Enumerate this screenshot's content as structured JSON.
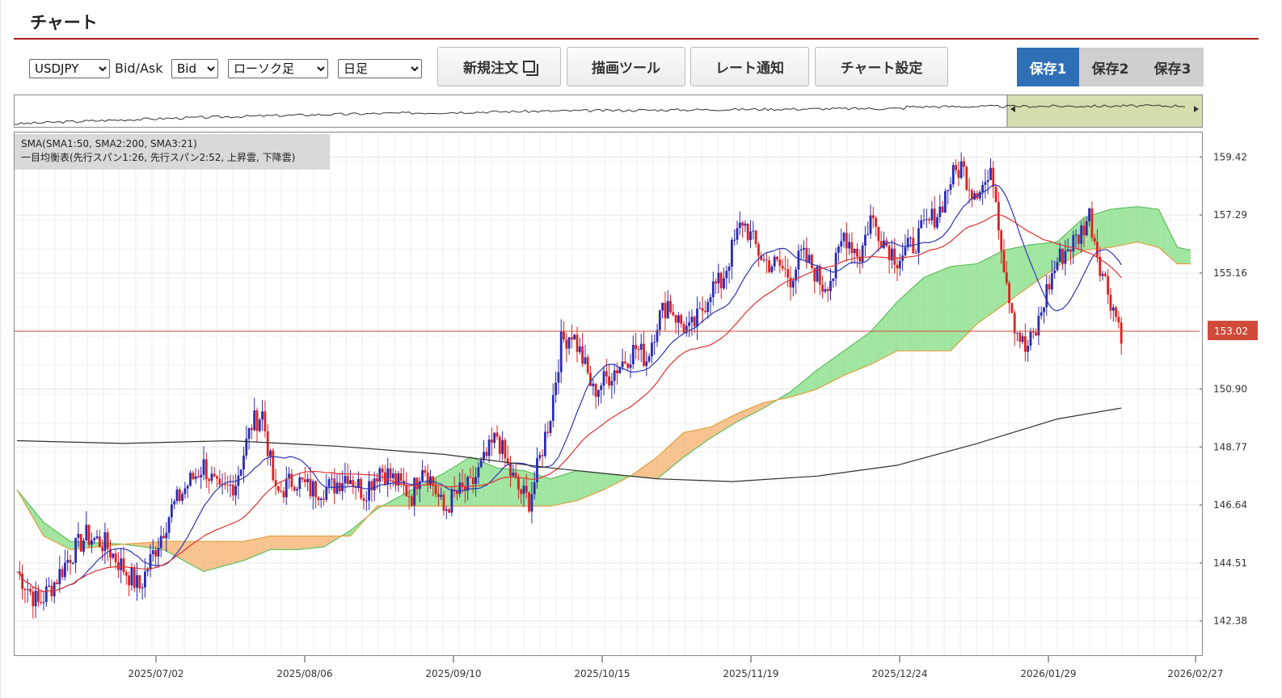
{
  "page": {
    "title": "チャート"
  },
  "toolbar": {
    "symbol": {
      "value": "USDJPY",
      "options": [
        "USDJPY"
      ]
    },
    "bidask_label": "Bid/Ask",
    "bidask": {
      "value": "Bid",
      "options": [
        "Bid"
      ]
    },
    "chart_type": {
      "value": "ローソク足",
      "options": [
        "ローソク足"
      ]
    },
    "timeframe": {
      "value": "日足",
      "options": [
        "日足"
      ]
    },
    "buttons": {
      "new_order": "新規注文",
      "drawing_tools": "描画ツール",
      "rate_alert": "レート通知",
      "chart_settings": "チャート設定"
    },
    "saves": [
      "保存1",
      "保存2",
      "保存3"
    ],
    "active_save": 0
  },
  "legend": {
    "line1": "SMA(SMA1:50, SMA2:200, SMA3:21)",
    "line2": "一目均衡表(先行スパン1:26, 先行スパン2:52, 上昇雲, 下降雲)"
  },
  "colors": {
    "up": "#2a2ab4",
    "down": "#e02020",
    "sma_short": "#2d35b8",
    "sma_mid": "#e23030",
    "sma_long": "#303030",
    "cloud_up": "#8ee08e",
    "cloud_down": "#f7b77a",
    "span_a": "#5fbf5f",
    "span_b": "#e2a040",
    "current_price": "#d04a3a"
  },
  "chart_data": {
    "type": "candlestick",
    "title": "",
    "y_ticks": [
      "159.42",
      "157.29",
      "155.16",
      "150.90",
      "148.77",
      "146.64",
      "144.51",
      "142.38"
    ],
    "y_range": [
      141.3,
      160.5
    ],
    "x_ticks": [
      "2025/07/02",
      "2025/08/06",
      "2025/09/10",
      "2025/10/15",
      "2025/11/19",
      "2025/12/24",
      "2026/01/29",
      "2026/02/27"
    ],
    "current_price": "153.02",
    "navigator_highlight": true,
    "grid": true,
    "price_path": [
      [
        0,
        144.2
      ],
      [
        8,
        143.0
      ],
      [
        14,
        143.8
      ],
      [
        20,
        144.8
      ],
      [
        26,
        145.5
      ],
      [
        33,
        145.2
      ],
      [
        40,
        144.3
      ],
      [
        46,
        143.6
      ],
      [
        50,
        144.6
      ],
      [
        58,
        146.5
      ],
      [
        64,
        147.4
      ],
      [
        70,
        148.1
      ],
      [
        76,
        147.0
      ],
      [
        82,
        147.5
      ],
      [
        88,
        149.6
      ],
      [
        92,
        150.0
      ],
      [
        97,
        147.0
      ],
      [
        104,
        147.6
      ],
      [
        110,
        147.2
      ],
      [
        118,
        147.3
      ],
      [
        124,
        147.8
      ],
      [
        130,
        147.1
      ],
      [
        136,
        148.0
      ],
      [
        142,
        147.5
      ],
      [
        148,
        147.0
      ],
      [
        152,
        148.2
      ],
      [
        156,
        147.4
      ],
      [
        160,
        146.4
      ],
      [
        164,
        147.0
      ],
      [
        170,
        147.3
      ],
      [
        176,
        148.4
      ],
      [
        180,
        149.2
      ],
      [
        184,
        148.0
      ],
      [
        188,
        147.2
      ],
      [
        192,
        146.8
      ],
      [
        194,
        147.5
      ],
      [
        200,
        150.0
      ],
      [
        204,
        152.6
      ],
      [
        208,
        153.0
      ],
      [
        212,
        152.0
      ],
      [
        216,
        150.8
      ],
      [
        220,
        151.2
      ],
      [
        226,
        151.8
      ],
      [
        232,
        152.4
      ],
      [
        236,
        152.0
      ],
      [
        240,
        153.4
      ],
      [
        244,
        154.1
      ],
      [
        248,
        153.4
      ],
      [
        252,
        153.0
      ],
      [
        256,
        153.6
      ],
      [
        260,
        154.6
      ],
      [
        264,
        154.8
      ],
      [
        268,
        156.0
      ],
      [
        272,
        157.1
      ],
      [
        276,
        156.3
      ],
      [
        280,
        155.6
      ],
      [
        286,
        155.4
      ],
      [
        290,
        155.0
      ],
      [
        294,
        155.8
      ],
      [
        298,
        155.4
      ],
      [
        302,
        154.7
      ],
      [
        306,
        155.1
      ],
      [
        310,
        156.6
      ],
      [
        316,
        155.8
      ],
      [
        320,
        157.2
      ],
      [
        326,
        156.2
      ],
      [
        330,
        155.7
      ],
      [
        336,
        156.2
      ],
      [
        340,
        156.8
      ],
      [
        346,
        157.5
      ],
      [
        350,
        158.6
      ],
      [
        354,
        159.1
      ],
      [
        358,
        158.2
      ],
      [
        362,
        158.4
      ],
      [
        366,
        158.7
      ],
      [
        370,
        155.5
      ],
      [
        374,
        153.3
      ],
      [
        378,
        152.3
      ],
      [
        382,
        153.0
      ],
      [
        386,
        154.5
      ],
      [
        390,
        155.6
      ],
      [
        394,
        156.1
      ],
      [
        398,
        156.5
      ],
      [
        402,
        157.3
      ],
      [
        406,
        155.5
      ],
      [
        410,
        154.2
      ],
      [
        414,
        153.0
      ]
    ],
    "sma_long_path": [
      [
        0,
        149.0
      ],
      [
        40,
        148.9
      ],
      [
        80,
        149.0
      ],
      [
        120,
        148.8
      ],
      [
        160,
        148.5
      ],
      [
        200,
        148.0
      ],
      [
        240,
        147.6
      ],
      [
        268,
        147.5
      ],
      [
        300,
        147.7
      ],
      [
        330,
        148.1
      ],
      [
        360,
        148.9
      ],
      [
        390,
        149.8
      ],
      [
        414,
        150.2
      ]
    ],
    "cloud_upper": [
      [
        0,
        147.2
      ],
      [
        10,
        146.0
      ],
      [
        20,
        145.3
      ],
      [
        40,
        145.2
      ],
      [
        55,
        145.0
      ],
      [
        70,
        144.2
      ],
      [
        85,
        144.6
      ],
      [
        95,
        145.0
      ],
      [
        105,
        145.0
      ],
      [
        115,
        145.1
      ],
      [
        125,
        145.7
      ],
      [
        135,
        146.5
      ],
      [
        150,
        147.3
      ],
      [
        160,
        147.8
      ],
      [
        170,
        148.4
      ],
      [
        180,
        148.0
      ],
      [
        190,
        147.9
      ],
      [
        200,
        147.6
      ],
      [
        210,
        147.9
      ],
      [
        220,
        147.8
      ],
      [
        230,
        147.7
      ],
      [
        240,
        147.6
      ],
      [
        250,
        148.4
      ],
      [
        260,
        149.1
      ],
      [
        270,
        149.7
      ],
      [
        280,
        150.2
      ],
      [
        290,
        150.8
      ],
      [
        300,
        151.6
      ],
      [
        310,
        152.3
      ],
      [
        320,
        153.0
      ],
      [
        330,
        154.1
      ],
      [
        340,
        155.0
      ],
      [
        350,
        155.4
      ],
      [
        360,
        155.5
      ],
      [
        370,
        156.0
      ],
      [
        380,
        156.2
      ],
      [
        390,
        156.3
      ],
      [
        400,
        157.2
      ],
      [
        410,
        157.5
      ],
      [
        420,
        157.6
      ],
      [
        428,
        157.5
      ],
      [
        435,
        156.1
      ],
      [
        440,
        156.0
      ]
    ],
    "cloud_lower": [
      [
        0,
        147.2
      ],
      [
        10,
        145.5
      ],
      [
        20,
        145.0
      ],
      [
        40,
        145.2
      ],
      [
        55,
        145.3
      ],
      [
        70,
        145.3
      ],
      [
        85,
        145.3
      ],
      [
        95,
        145.5
      ],
      [
        105,
        145.5
      ],
      [
        115,
        145.5
      ],
      [
        125,
        145.5
      ],
      [
        135,
        146.6
      ],
      [
        150,
        146.6
      ],
      [
        160,
        146.6
      ],
      [
        170,
        146.6
      ],
      [
        180,
        146.6
      ],
      [
        190,
        146.6
      ],
      [
        200,
        146.6
      ],
      [
        210,
        146.8
      ],
      [
        220,
        147.2
      ],
      [
        230,
        147.7
      ],
      [
        240,
        148.4
      ],
      [
        250,
        149.3
      ],
      [
        260,
        149.5
      ],
      [
        270,
        150.0
      ],
      [
        280,
        150.4
      ],
      [
        290,
        150.6
      ],
      [
        300,
        150.9
      ],
      [
        310,
        151.4
      ],
      [
        320,
        151.8
      ],
      [
        330,
        152.3
      ],
      [
        340,
        152.3
      ],
      [
        350,
        152.3
      ],
      [
        360,
        153.3
      ],
      [
        370,
        154.0
      ],
      [
        380,
        154.7
      ],
      [
        390,
        155.4
      ],
      [
        400,
        156.0
      ],
      [
        410,
        156.1
      ],
      [
        420,
        156.3
      ],
      [
        428,
        156.1
      ],
      [
        435,
        155.5
      ],
      [
        440,
        155.5
      ]
    ]
  }
}
